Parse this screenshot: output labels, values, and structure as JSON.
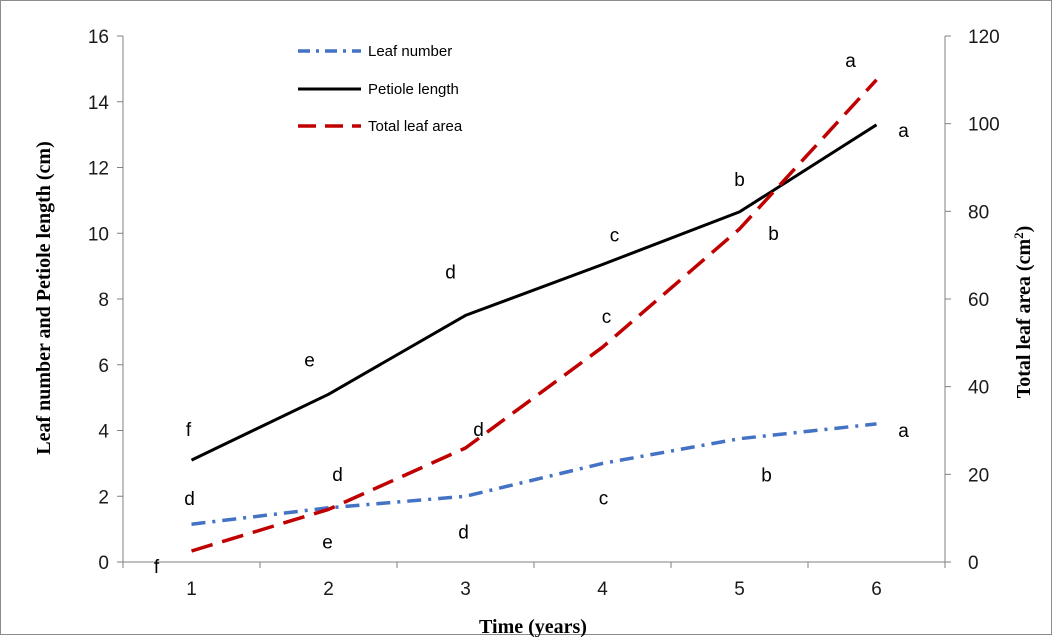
{
  "chart_data": {
    "type": "line",
    "xlabel": "Time (years)",
    "ylabel_left": "Leaf number  and Petiole length (cm)",
    "ylabel_right": "Total leaf area (cm²)",
    "ylabel_right_main": "Total leaf area (cm",
    "ylabel_right_sup": "2",
    "ylabel_right_close": ")",
    "x": [
      1,
      2,
      3,
      4,
      5,
      6
    ],
    "x_ticks": [
      "1",
      "2",
      "3",
      "4",
      "5",
      "6"
    ],
    "xlim": [
      0.5,
      6.5
    ],
    "ylim_left": [
      0,
      16
    ],
    "y_ticks_left": [
      "0",
      "2",
      "4",
      "6",
      "8",
      "10",
      "12",
      "14",
      "16"
    ],
    "ylim_right": [
      0,
      120
    ],
    "y_ticks_right": [
      "0",
      "20",
      "40",
      "60",
      "80",
      "100",
      "120"
    ],
    "legend_position": "top-left",
    "grid": false,
    "series": [
      {
        "name": "Leaf number",
        "axis": "left",
        "style": "dash-dot",
        "color": "#4472c4",
        "values": [
          1.15,
          1.65,
          2.0,
          3.0,
          3.75,
          4.2
        ],
        "significance_letters": [
          "d",
          "d",
          "d",
          "c",
          "b",
          "a"
        ]
      },
      {
        "name": "Petiole length",
        "axis": "left",
        "style": "solid",
        "color": "#000000",
        "values": [
          3.1,
          5.1,
          7.5,
          9.05,
          10.65,
          13.3
        ],
        "significance_letters": [
          "f",
          "e",
          "d",
          "c",
          "b",
          "a"
        ]
      },
      {
        "name": "Total leaf area",
        "axis": "right",
        "style": "dashed",
        "color": "#c00000",
        "values": [
          2.5,
          12,
          26,
          49,
          76,
          110
        ],
        "significance_letters": [
          "f",
          "e",
          "d",
          "c",
          "b",
          "a"
        ]
      }
    ]
  }
}
